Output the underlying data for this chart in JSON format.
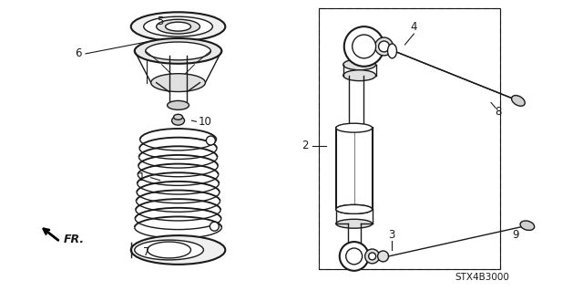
{
  "bg_color": "#ffffff",
  "line_color": "#1a1a1a",
  "code": "STX4B3000",
  "fig_w": 6.4,
  "fig_h": 3.19,
  "dpi": 100
}
